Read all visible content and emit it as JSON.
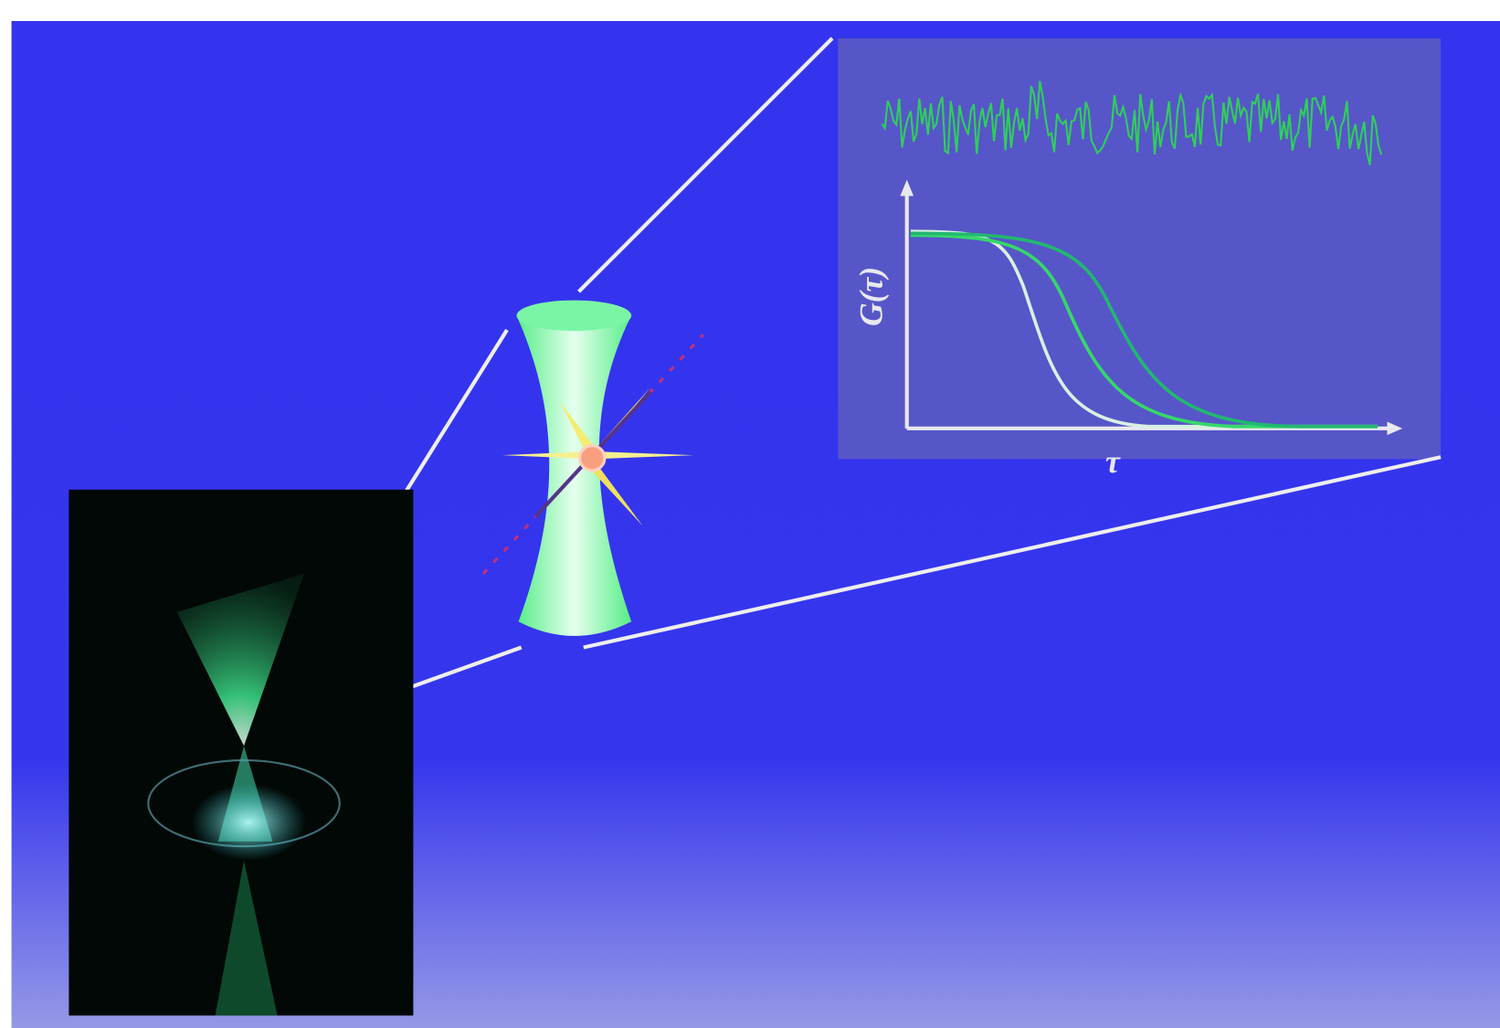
{
  "plot": {
    "y_axis_label": "G(τ)",
    "x_axis_label": "τ"
  }
}
